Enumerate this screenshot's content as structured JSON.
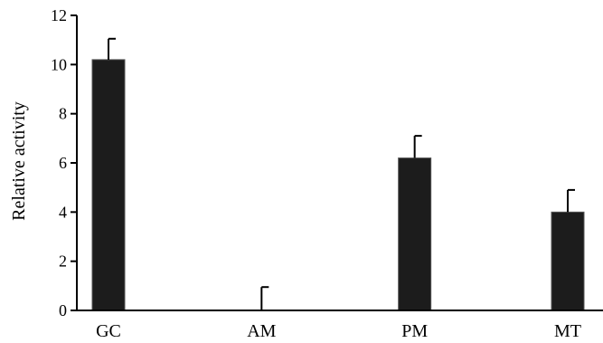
{
  "chart_data": {
    "type": "bar",
    "title": "",
    "xlabel": "",
    "ylabel": "Relative activity",
    "ylim": [
      0,
      12
    ],
    "yticks": [
      "0",
      "2",
      "4",
      "6",
      "8",
      "10",
      "12"
    ],
    "categories": [
      "GC",
      "AM",
      "PM",
      "MT"
    ],
    "values": [
      10.2,
      0,
      6.2,
      4.0
    ],
    "errors": [
      0.85,
      0.95,
      0.9,
      0.9
    ],
    "bar_color": "#1c1c1c",
    "grid": false,
    "legend": "none"
  }
}
